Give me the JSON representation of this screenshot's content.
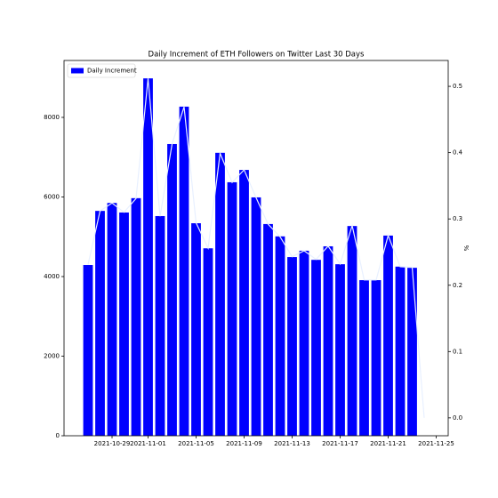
{
  "chart_data": {
    "type": "bar",
    "title": "Daily Increment of ETH Followers on Twitter Last 30 Days",
    "y2_label": "%",
    "series": [
      {
        "name": "Daily Increment",
        "type": "bar",
        "color": "#0000ff",
        "x": [
          "2021-10-27",
          "2021-10-28",
          "2021-10-29",
          "2021-10-30",
          "2021-10-31",
          "2021-11-01",
          "2021-11-02",
          "2021-11-03",
          "2021-11-04",
          "2021-11-05",
          "2021-11-06",
          "2021-11-07",
          "2021-11-08",
          "2021-11-09",
          "2021-11-10",
          "2021-11-11",
          "2021-11-12",
          "2021-11-13",
          "2021-11-14",
          "2021-11-15",
          "2021-11-16",
          "2021-11-17",
          "2021-11-18",
          "2021-11-19",
          "2021-11-20",
          "2021-11-21",
          "2021-11-22",
          "2021-11-23"
        ],
        "values": [
          4290,
          5650,
          5850,
          5610,
          5970,
          8980,
          5520,
          7330,
          8270,
          5340,
          4710,
          7110,
          6370,
          6680,
          5990,
          5320,
          5010,
          4490,
          4650,
          4420,
          4760,
          4310,
          5270,
          3910,
          3910,
          5030,
          4250,
          4220
        ]
      },
      {
        "type": "line",
        "axis": "y2",
        "color": "#e8f0ff",
        "x": [
          "2021-10-27",
          "2021-10-28",
          "2021-10-29",
          "2021-10-30",
          "2021-10-31",
          "2021-11-01",
          "2021-11-02",
          "2021-11-03",
          "2021-11-04",
          "2021-11-05",
          "2021-11-06",
          "2021-11-07",
          "2021-11-08",
          "2021-11-09",
          "2021-11-10",
          "2021-11-11",
          "2021-11-12",
          "2021-11-13",
          "2021-11-14",
          "2021-11-15",
          "2021-11-16",
          "2021-11-17",
          "2021-11-18",
          "2021-11-19",
          "2021-11-20",
          "2021-11-21",
          "2021-11-22",
          "2021-11-23",
          "2021-11-24"
        ],
        "values": [
          0.231,
          0.312,
          0.324,
          0.31,
          0.331,
          0.512,
          0.304,
          0.413,
          0.469,
          0.294,
          0.256,
          0.399,
          0.355,
          0.374,
          0.332,
          0.292,
          0.273,
          0.243,
          0.252,
          0.239,
          0.259,
          0.232,
          0.29,
          0.208,
          0.208,
          0.275,
          0.228,
          0.227,
          0
        ]
      }
    ],
    "xlim": [
      "2021-10-25",
      "2021-11-26"
    ],
    "xticks": [
      "2021-10-29",
      "2021-11-01",
      "2021-11-05",
      "2021-11-09",
      "2021-11-13",
      "2021-11-17",
      "2021-11-21",
      "2021-11-25"
    ],
    "ylim": [
      0,
      9430
    ],
    "yticks": [
      0,
      2000,
      4000,
      6000,
      8000
    ],
    "y2lim": [
      -0.027,
      0.539
    ],
    "y2ticks": [
      {
        "value": 0,
        "label": "0.0"
      },
      0.1,
      0.2,
      0.3,
      0.4,
      0.5
    ],
    "legend": "upper left"
  }
}
